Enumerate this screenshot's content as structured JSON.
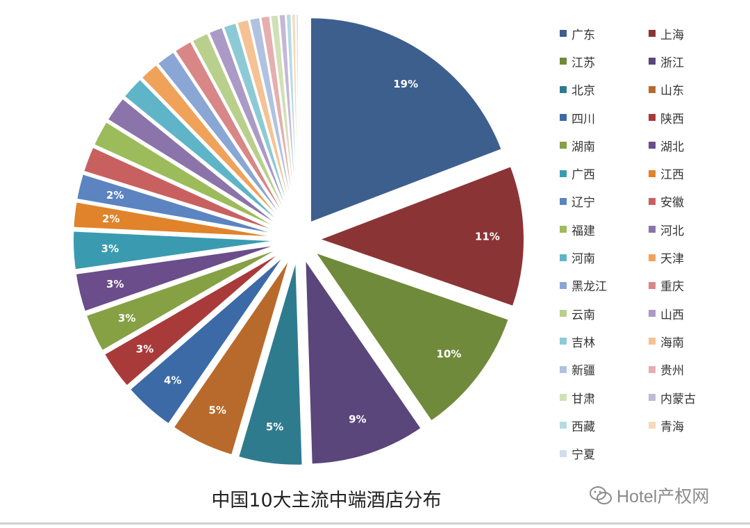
{
  "chart_data": {
    "type": "pie",
    "title": "中国10大主流中端酒店分布",
    "categories": [
      "广东",
      "上海",
      "江苏",
      "浙江",
      "北京",
      "山东",
      "四川",
      "陕西",
      "湖南",
      "湖北",
      "广西",
      "江西",
      "辽宁",
      "安徽",
      "福建",
      "河北",
      "河南",
      "天津",
      "黑龙江",
      "重庆",
      "云南",
      "山西",
      "吉林",
      "海南",
      "新疆",
      "贵州",
      "甘肃",
      "内蒙古",
      "西藏",
      "青海",
      "宁夏"
    ],
    "values": [
      19,
      11,
      10,
      9,
      5,
      5,
      4,
      3,
      3,
      3,
      3,
      2,
      2,
      2,
      2,
      2,
      1.8,
      1.5,
      1.5,
      1.4,
      1.3,
      1.1,
      1,
      0.9,
      0.8,
      0.7,
      0.6,
      0.5,
      0.4,
      0.3,
      0.2
    ],
    "data_labels": [
      "19%",
      "11%",
      "10%",
      "9%",
      "5%",
      "5%",
      "4%",
      "3%",
      "3%",
      "3%",
      "3%",
      "2%",
      "2%",
      "",
      "",
      "",
      "",
      "",
      "",
      "",
      "",
      "",
      "",
      "",
      "",
      "",
      "",
      "",
      "",
      "",
      ""
    ],
    "colors": [
      "#3d5f8e",
      "#8b3436",
      "#6f8a3a",
      "#5a467a",
      "#2f7b8e",
      "#b86a2c",
      "#3c6aa6",
      "#a83a3a",
      "#86a044",
      "#6a4d8a",
      "#3a9bb0",
      "#e0832a",
      "#5b84c1",
      "#c96060",
      "#9cbb5a",
      "#8a74aa",
      "#5fb4c8",
      "#f0a25a",
      "#8aa6d4",
      "#d98686",
      "#b9cf8c",
      "#ab9ac6",
      "#8ccad6",
      "#f5c294",
      "#b0c2e0",
      "#e6aeae",
      "#d1e0b5",
      "#c4b8d8",
      "#b5dbe3",
      "#f8d8b8",
      "#d2dced"
    ],
    "legend_position": "right"
  },
  "watermark": "Hotel产权网"
}
